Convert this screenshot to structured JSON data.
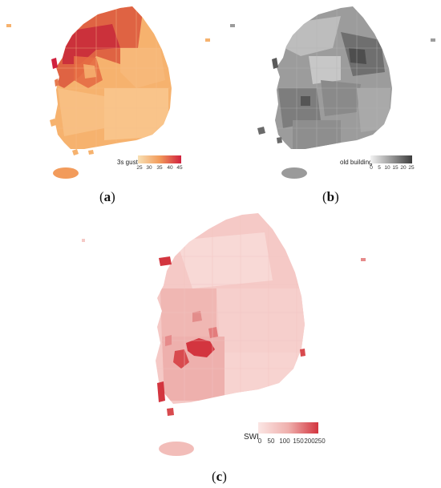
{
  "panels": {
    "a": {
      "caption_letter": "a",
      "legend_title": "3s gust",
      "legend_ticks": [
        "25",
        "30",
        "35",
        "40",
        "45"
      ],
      "colors": {
        "low": "#f8e0b4",
        "mid": "#f29b5b",
        "high": "#d0213e"
      }
    },
    "b": {
      "caption_letter": "b",
      "legend_title": "old building",
      "legend_ticks": [
        "0",
        "5",
        "10",
        "15",
        "20",
        "25"
      ],
      "colors": {
        "low": "#f2f2f2",
        "mid": "#9a9a9a",
        "high": "#3d3d3d"
      }
    },
    "c": {
      "caption_letter": "c",
      "legend_title": "SWI",
      "legend_ticks": [
        "0",
        "50",
        "100",
        "150",
        "200",
        "250"
      ],
      "colors": {
        "low": "#fbe6e4",
        "mid": "#efb0ad",
        "high": "#d3353f"
      }
    }
  }
}
